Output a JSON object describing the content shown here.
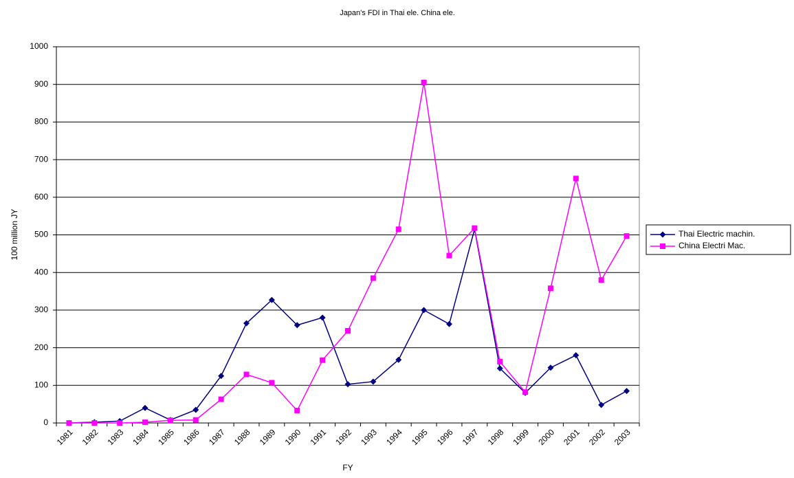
{
  "chart_data": {
    "type": "line",
    "title": "Japan's FDI in Thai ele. China ele.",
    "x_label": "FY",
    "y_label": "100 million JY",
    "categories": [
      "1981",
      "1982",
      "1983",
      "1984",
      "1985",
      "1986",
      "1987",
      "1988",
      "1989",
      "1990",
      "1991",
      "1992",
      "1993",
      "1994",
      "1995",
      "1996",
      "1997",
      "1998",
      "1999",
      "2000",
      "2001",
      "2002",
      "2003"
    ],
    "series": [
      {
        "name": "Thai Electric machin.",
        "color": "#000080",
        "marker": "diamond",
        "values": [
          0,
          2,
          5,
          40,
          8,
          35,
          125,
          265,
          327,
          260,
          280,
          103,
          110,
          168,
          300,
          263,
          515,
          145,
          80,
          147,
          180,
          48,
          85
        ]
      },
      {
        "name": "China Electri Mac.",
        "color": "#ff00ff",
        "marker": "square",
        "values": [
          0,
          0,
          0,
          2,
          7,
          8,
          63,
          129,
          107,
          33,
          167,
          245,
          385,
          515,
          905,
          445,
          518,
          163,
          82,
          358,
          650,
          380,
          497
        ]
      }
    ],
    "ylim": [
      0,
      1000
    ],
    "yticks": [
      0,
      100,
      200,
      300,
      400,
      500,
      600,
      700,
      800,
      900,
      1000
    ],
    "grid": true,
    "legend": "right"
  }
}
